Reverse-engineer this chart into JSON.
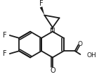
{
  "bg_color": "#ffffff",
  "line_color": "#1a1a1a",
  "lw": 1.3,
  "figsize": [
    1.41,
    1.19
  ],
  "dpi": 100,
  "xlim": [
    0,
    141
  ],
  "ylim": [
    0,
    119
  ]
}
